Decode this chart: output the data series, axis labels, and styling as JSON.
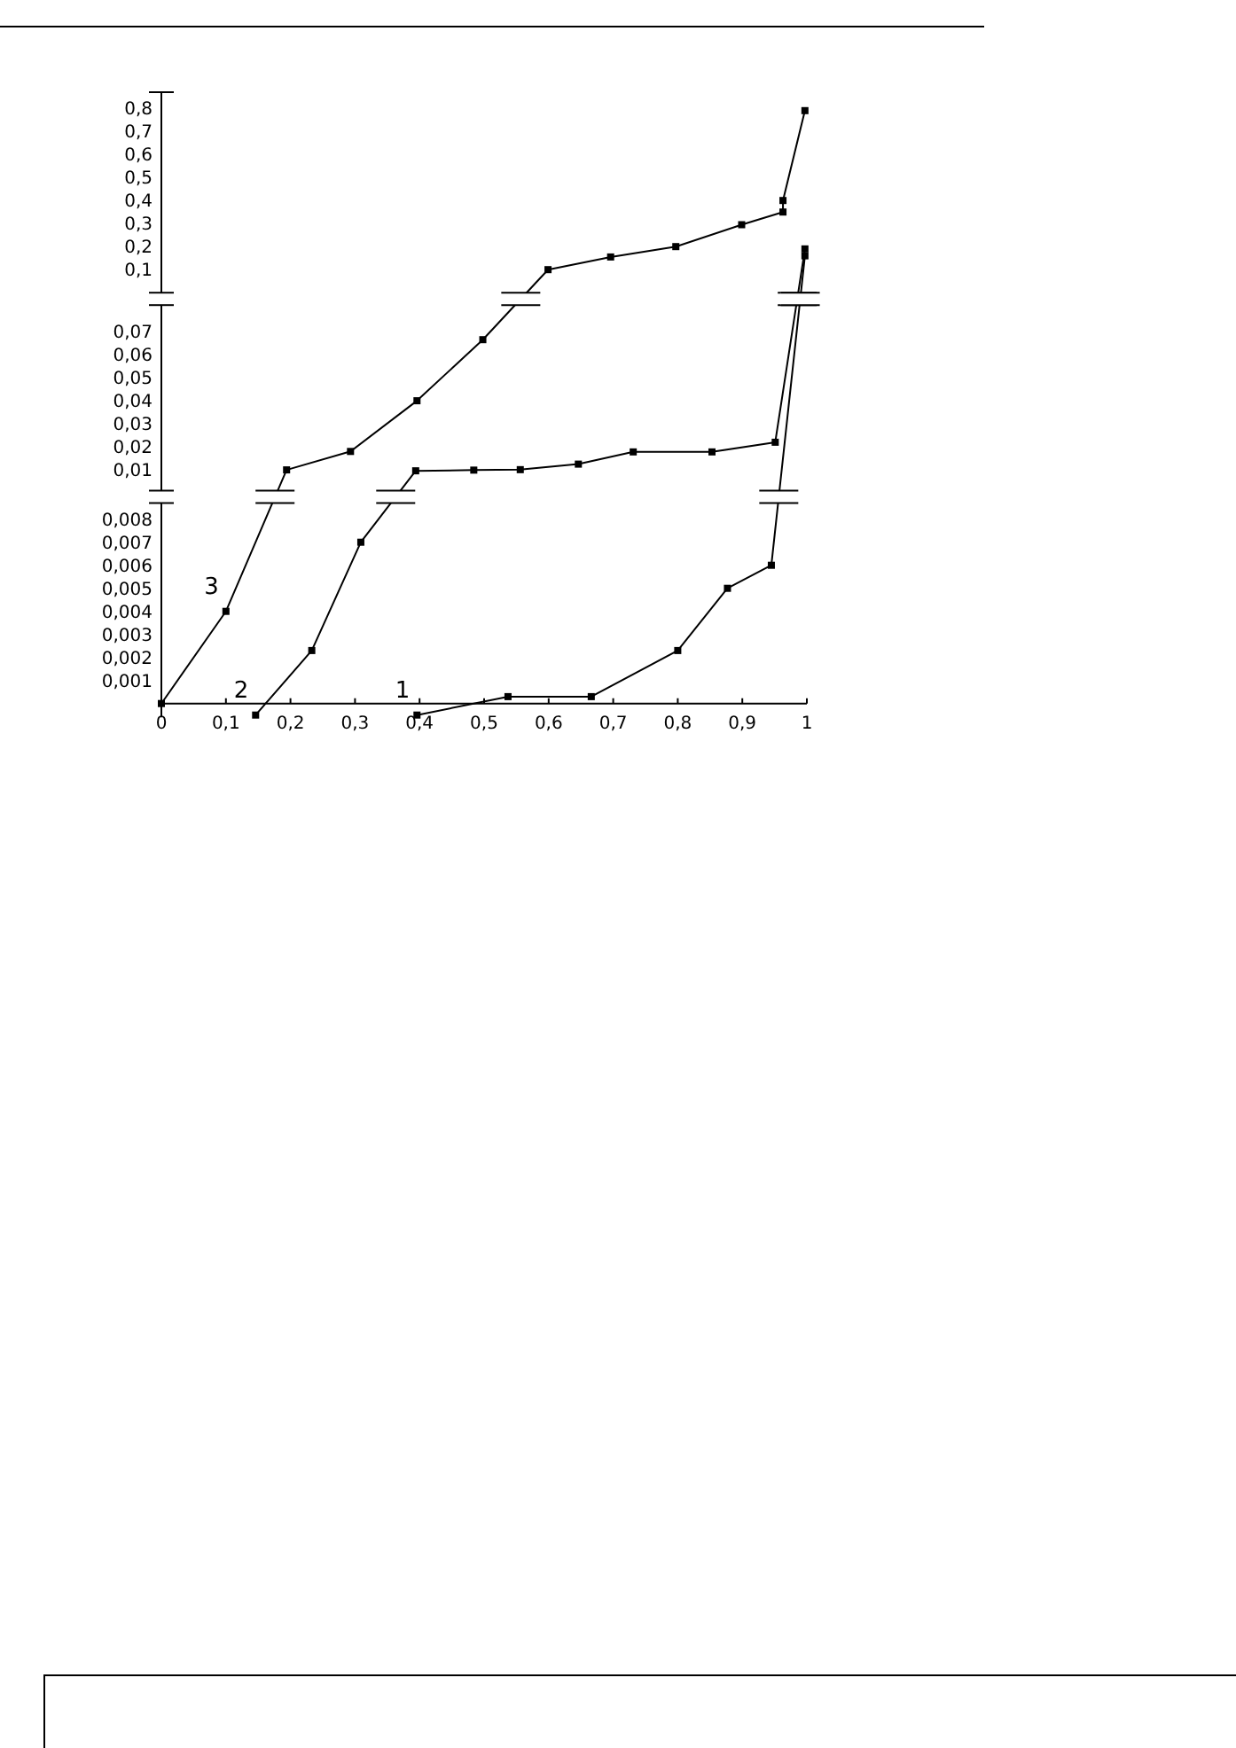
{
  "chart_data": [
    {
      "type": "line",
      "marker": "square",
      "tick_labels": "y",
      "xlim": [
        0,
        1
      ],
      "ylim": [
        0,
        0.87
      ],
      "yticks": [
        {
          "value": 0.1,
          "label": "0,1"
        },
        {
          "value": 0.2,
          "label": "0,2"
        },
        {
          "value": 0.3,
          "label": "0,3"
        },
        {
          "value": 0.4,
          "label": "0,4"
        },
        {
          "value": 0.5,
          "label": "0,5"
        },
        {
          "value": 0.6,
          "label": "0,6"
        },
        {
          "value": 0.7,
          "label": "0,7"
        },
        {
          "value": 0.8,
          "label": "0,8"
        }
      ],
      "series": [
        {
          "color": "#000000",
          "x": [
            0.997
          ],
          "values": [
            0.16
          ]
        },
        {
          "color": "#000000",
          "x": [
            0.997
          ],
          "values": [
            0.19
          ]
        },
        {
          "color": "#000000",
          "x": [
            0.599,
            0.696,
            0.797,
            0.899,
            0.963,
            0.963,
            0.997
          ],
          "values": [
            0.1,
            0.155,
            0.2,
            0.295,
            0.35,
            0.4,
            0.79
          ]
        }
      ]
    },
    {
      "type": "line",
      "marker": "square",
      "tick_labels": "y",
      "xlim": [
        0,
        1
      ],
      "ylim": [
        0.001,
        0.0815
      ],
      "yticks": [
        {
          "value": 0.01,
          "label": "0,01"
        },
        {
          "value": 0.02,
          "label": "0,02"
        },
        {
          "value": 0.03,
          "label": "0,03"
        },
        {
          "value": 0.04,
          "label": "0,04"
        },
        {
          "value": 0.05,
          "label": "0,05"
        },
        {
          "value": 0.06,
          "label": "0,06"
        },
        {
          "value": 0.07,
          "label": "0,07"
        }
      ],
      "series": [
        {
          "color": "#000000"
        },
        {
          "color": "#000000",
          "x": [
            0.394,
            0.484,
            0.556,
            0.646,
            0.731,
            0.853,
            0.951
          ],
          "values": [
            0.0096,
            0.0099,
            0.0101,
            0.0125,
            0.0178,
            0.0178,
            0.022
          ]
        },
        {
          "color": "#000000",
          "x": [
            0.194,
            0.293,
            0.396,
            0.498
          ],
          "values": [
            0.01,
            0.018,
            0.04,
            0.0665
          ]
        }
      ]
    },
    {
      "type": "line",
      "marker": "square",
      "xlim": [
        0,
        1
      ],
      "ylim": [
        -0.0006,
        0.0087
      ],
      "xticks": [
        0,
        {
          "value": 0.1,
          "label": "0,1"
        },
        {
          "value": 0.2,
          "label": "0,2"
        },
        {
          "value": 0.3,
          "label": "0,3"
        },
        {
          "value": 0.4,
          "label": "0,4"
        },
        {
          "value": 0.5,
          "label": "0,5"
        },
        {
          "value": 0.6,
          "label": "0,6"
        },
        {
          "value": 0.7,
          "label": "0,7"
        },
        {
          "value": 0.8,
          "label": "0,8"
        },
        {
          "value": 0.9,
          "label": "0,9"
        },
        1
      ],
      "yticks": [
        {
          "value": 0.001,
          "label": "0,001"
        },
        {
          "value": 0.002,
          "label": "0,002"
        },
        {
          "value": 0.003,
          "label": "0,003"
        },
        {
          "value": 0.004,
          "label": "0,004"
        },
        {
          "value": 0.005,
          "label": "0,005"
        },
        {
          "value": 0.006,
          "label": "0,006"
        },
        {
          "value": 0.007,
          "label": "0,007"
        },
        {
          "value": 0.008,
          "label": "0,008"
        }
      ],
      "series": [
        {
          "color": "#000000",
          "x": [
            0.396,
            0.537,
            0.666,
            0.8,
            0.877,
            0.945
          ],
          "values": [
            -0.0005,
            0.0003,
            0.0003,
            0.0023,
            0.005,
            0.006
          ]
        },
        {
          "color": "#000000",
          "x": [
            0.146,
            0.233,
            0.309
          ],
          "values": [
            -0.0005,
            0.0023,
            0.007
          ]
        },
        {
          "color": "#000000",
          "x": [
            0,
            0.1
          ],
          "values": [
            0,
            0.004
          ]
        }
      ],
      "annotations": [
        {
          "text": "3",
          "x": 0.1,
          "y": 0.004
        },
        {
          "text": "2",
          "x": 0.146,
          "y": -0.0005
        },
        {
          "text": "1",
          "x": 0.396,
          "y": -0.0005
        }
      ]
    }
  ]
}
